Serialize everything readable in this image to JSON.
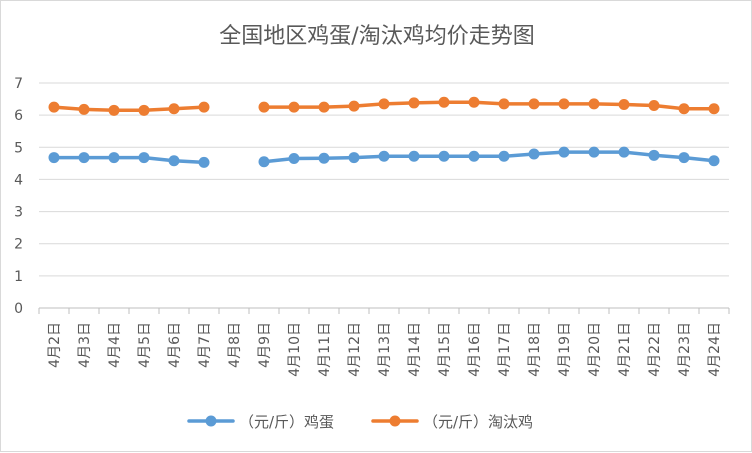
{
  "chart_data": {
    "type": "line",
    "title": "全国地区鸡蛋/淘汰鸡均价走势图",
    "xlabel": "",
    "ylabel": "",
    "ylim": [
      0,
      7
    ],
    "yticks": [
      "0",
      "1",
      "2",
      "3",
      "4",
      "5",
      "6",
      "7"
    ],
    "grid": true,
    "legend_position": "bottom",
    "categories": [
      "4月2日",
      "4月3日",
      "4月4日",
      "4月5日",
      "4月6日",
      "4月7日",
      "4月8日",
      "4月9日",
      "4月10日",
      "4月11日",
      "4月12日",
      "4月13日",
      "4月14日",
      "4月15日",
      "4月16日",
      "4月17日",
      "4月18日",
      "4月19日",
      "4月20日",
      "4月21日",
      "4月22日",
      "4月23日",
      "4月24日"
    ],
    "series": [
      {
        "name": "（元/斤）鸡蛋",
        "color": "#5b9bd5",
        "values": [
          4.68,
          4.68,
          4.68,
          4.68,
          4.58,
          4.53,
          null,
          4.55,
          4.65,
          4.66,
          4.68,
          4.72,
          4.72,
          4.72,
          4.72,
          4.72,
          4.79,
          4.85,
          4.85,
          4.85,
          4.75,
          4.68,
          4.58
        ]
      },
      {
        "name": "（元/斤）淘汰鸡",
        "color": "#ed7d31",
        "values": [
          6.25,
          6.18,
          6.15,
          6.15,
          6.2,
          6.25,
          null,
          6.25,
          6.25,
          6.25,
          6.28,
          6.35,
          6.38,
          6.4,
          6.4,
          6.35,
          6.35,
          6.35,
          6.35,
          6.33,
          6.3,
          6.2,
          6.2
        ]
      }
    ]
  }
}
